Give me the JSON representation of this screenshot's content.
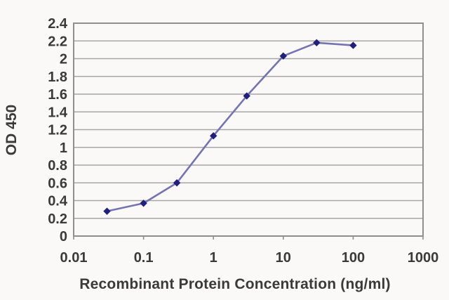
{
  "chart_data": {
    "type": "line",
    "title": "",
    "xlabel": "Recombinant Protein Concentration (ng/ml)",
    "ylabel": "OD 450",
    "xscale": "log",
    "xlim": [
      0.01,
      1000
    ],
    "ylim": [
      0,
      2.4
    ],
    "x_tick_values": [
      0.01,
      0.1,
      1,
      10,
      100,
      1000
    ],
    "x_tick_labels": [
      "0.01",
      "0.1",
      "1",
      "10",
      "100",
      "1000"
    ],
    "y_tick_values": [
      0,
      0.2,
      0.4,
      0.6,
      0.8,
      1,
      1.2,
      1.4,
      1.6,
      1.8,
      2,
      2.2,
      2.4
    ],
    "y_tick_labels": [
      "0",
      "0.2",
      "0.4",
      "0.6",
      "0.8",
      "1",
      "1.2",
      "1.4",
      "1.6",
      "1.8",
      "2",
      "2.2",
      "2.4"
    ],
    "grid": "horizontal",
    "legend": "none",
    "marker": "diamond",
    "x": [
      0.03,
      0.1,
      0.3,
      1,
      3,
      10,
      30,
      100
    ],
    "y": [
      0.28,
      0.37,
      0.6,
      1.13,
      1.58,
      2.03,
      2.18,
      2.15
    ],
    "colors": {
      "line": "#7474b2",
      "marker": "#1f1f80",
      "grid": "#a6a6a6",
      "axis": "#8f8f8f",
      "text": "#3a3a3a",
      "background": "#faf9f7"
    }
  }
}
